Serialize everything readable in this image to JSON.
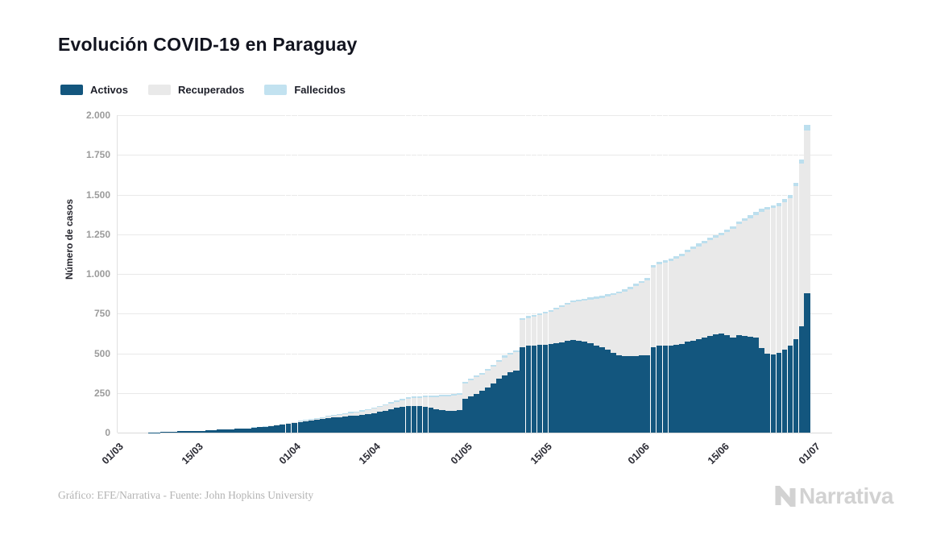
{
  "header": {
    "title": "Evolución COVID-19 en Paraguay"
  },
  "legend": [
    {
      "label": "Activos",
      "color": "#13567e"
    },
    {
      "label": "Recuperados",
      "color": "#e9e9e9"
    },
    {
      "label": "Fallecidos",
      "color": "#c2e2f0"
    }
  ],
  "footer": {
    "credit": "Gráfico: EFE/Narrativa - Fuente: John Hopkins University",
    "brand": "Narrativa"
  },
  "chart_data": {
    "type": "bar",
    "stacked": true,
    "title": "Evolución COVID-19 en Paraguay",
    "xlabel": "",
    "ylabel": "Número de casos",
    "ylim": [
      0,
      2000
    ],
    "grid": true,
    "legend_position": "top-left",
    "start_date": "01/03",
    "end_date": "30/06",
    "y_ticks": [
      {
        "value": 0,
        "label": "0"
      },
      {
        "value": 250,
        "label": "250"
      },
      {
        "value": 500,
        "label": "500"
      },
      {
        "value": 750,
        "label": "750"
      },
      {
        "value": 1000,
        "label": "1.000"
      },
      {
        "value": 1250,
        "label": "1.250"
      },
      {
        "value": 1500,
        "label": "1.500"
      },
      {
        "value": 1750,
        "label": "1.750"
      },
      {
        "value": 2000,
        "label": "2.000"
      }
    ],
    "x_ticks": [
      {
        "label": "01/03",
        "day": 0
      },
      {
        "label": "15/03",
        "day": 14
      },
      {
        "label": "01/04",
        "day": 31
      },
      {
        "label": "15/04",
        "day": 45
      },
      {
        "label": "01/05",
        "day": 61
      },
      {
        "label": "15/05",
        "day": 75
      },
      {
        "label": "01/06",
        "day": 92
      },
      {
        "label": "15/06",
        "day": 106
      },
      {
        "label": "01/07",
        "day": 122
      }
    ],
    "series": [
      {
        "name": "Activos",
        "color": "#13567e",
        "values": [
          0,
          0,
          0,
          0,
          0,
          0,
          1,
          2,
          5,
          6,
          7,
          8,
          9,
          9,
          9,
          11,
          13,
          15,
          18,
          20,
          21,
          24,
          25,
          26,
          31,
          34,
          36,
          43,
          48,
          52,
          56,
          62,
          66,
          70,
          74,
          81,
          85,
          90,
          94,
          98,
          103,
          107,
          108,
          111,
          116,
          124,
          131,
          139,
          148,
          155,
          162,
          168,
          170,
          168,
          163,
          155,
          148,
          142,
          139,
          139,
          142,
          212,
          228,
          246,
          263,
          284,
          310,
          338,
          362,
          380,
          390,
          540,
          546,
          549,
          551,
          554,
          557,
          563,
          570,
          577,
          584,
          581,
          574,
          561,
          547,
          536,
          521,
          503,
          488,
          483,
          482,
          484,
          486,
          488,
          536,
          548,
          546,
          548,
          551,
          556,
          572,
          579,
          588,
          598,
          608,
          618,
          624,
          613,
          600,
          614,
          611,
          606,
          601,
          535,
          497,
          493,
          505,
          525,
          548,
          590,
          672,
          880
        ]
      },
      {
        "name": "Recuperados",
        "color": "#e9e9e9",
        "values": [
          0,
          0,
          0,
          0,
          0,
          0,
          0,
          0,
          0,
          0,
          0,
          0,
          0,
          0,
          0,
          0,
          0,
          0,
          0,
          0,
          0,
          0,
          0,
          0,
          0,
          0,
          1,
          1,
          2,
          2,
          3,
          3,
          4,
          5,
          6,
          7,
          8,
          10,
          12,
          13,
          15,
          17,
          19,
          22,
          25,
          27,
          30,
          33,
          36,
          39,
          42,
          45,
          48,
          52,
          59,
          69,
          78,
          86,
          92,
          96,
          98,
          98,
          100,
          102,
          104,
          106,
          108,
          110,
          112,
          114,
          116,
          170,
          176,
          182,
          189,
          196,
          204,
          212,
          220,
          228,
          236,
          247,
          259,
          277,
          296,
          313,
          337,
          364,
          389,
          407,
          424,
          440,
          456,
          472,
          506,
          514,
          526,
          535,
          545,
          556,
          566,
          577,
          587,
          596,
          604,
          611,
          619,
          650,
          682,
          700,
          722,
          746,
          772,
          857,
          907,
          921,
          923,
          925,
          931,
          962,
          1026,
          1026
        ]
      },
      {
        "name": "Fallecidos",
        "color": "#bcdfee",
        "values": [
          0,
          0,
          0,
          0,
          0,
          0,
          0,
          0,
          0,
          0,
          0,
          0,
          0,
          0,
          0,
          0,
          0,
          0,
          0,
          1,
          1,
          2,
          2,
          2,
          3,
          3,
          3,
          3,
          3,
          3,
          3,
          3,
          4,
          4,
          4,
          5,
          5,
          5,
          6,
          6,
          6,
          7,
          7,
          7,
          7,
          8,
          8,
          8,
          9,
          9,
          9,
          10,
          10,
          10,
          10,
          10,
          10,
          10,
          10,
          10,
          10,
          10,
          10,
          10,
          10,
          10,
          11,
          11,
          11,
          11,
          11,
          11,
          12,
          12,
          12,
          12,
          12,
          12,
          12,
          12,
          12,
          12,
          12,
          13,
          13,
          13,
          13,
          13,
          13,
          13,
          14,
          14,
          14,
          14,
          15,
          15,
          15,
          15,
          15,
          16,
          16,
          16,
          16,
          16,
          17,
          17,
          17,
          17,
          17,
          18,
          18,
          18,
          19,
          19,
          19,
          19,
          20,
          20,
          21,
          22,
          22,
          34
        ]
      }
    ],
    "separator_days": [
      30,
      31,
      32,
      51,
      52,
      53,
      54,
      55,
      72,
      73,
      74,
      75,
      76,
      94,
      95,
      96,
      97,
      115,
      116,
      117,
      118,
      119,
      120
    ]
  }
}
